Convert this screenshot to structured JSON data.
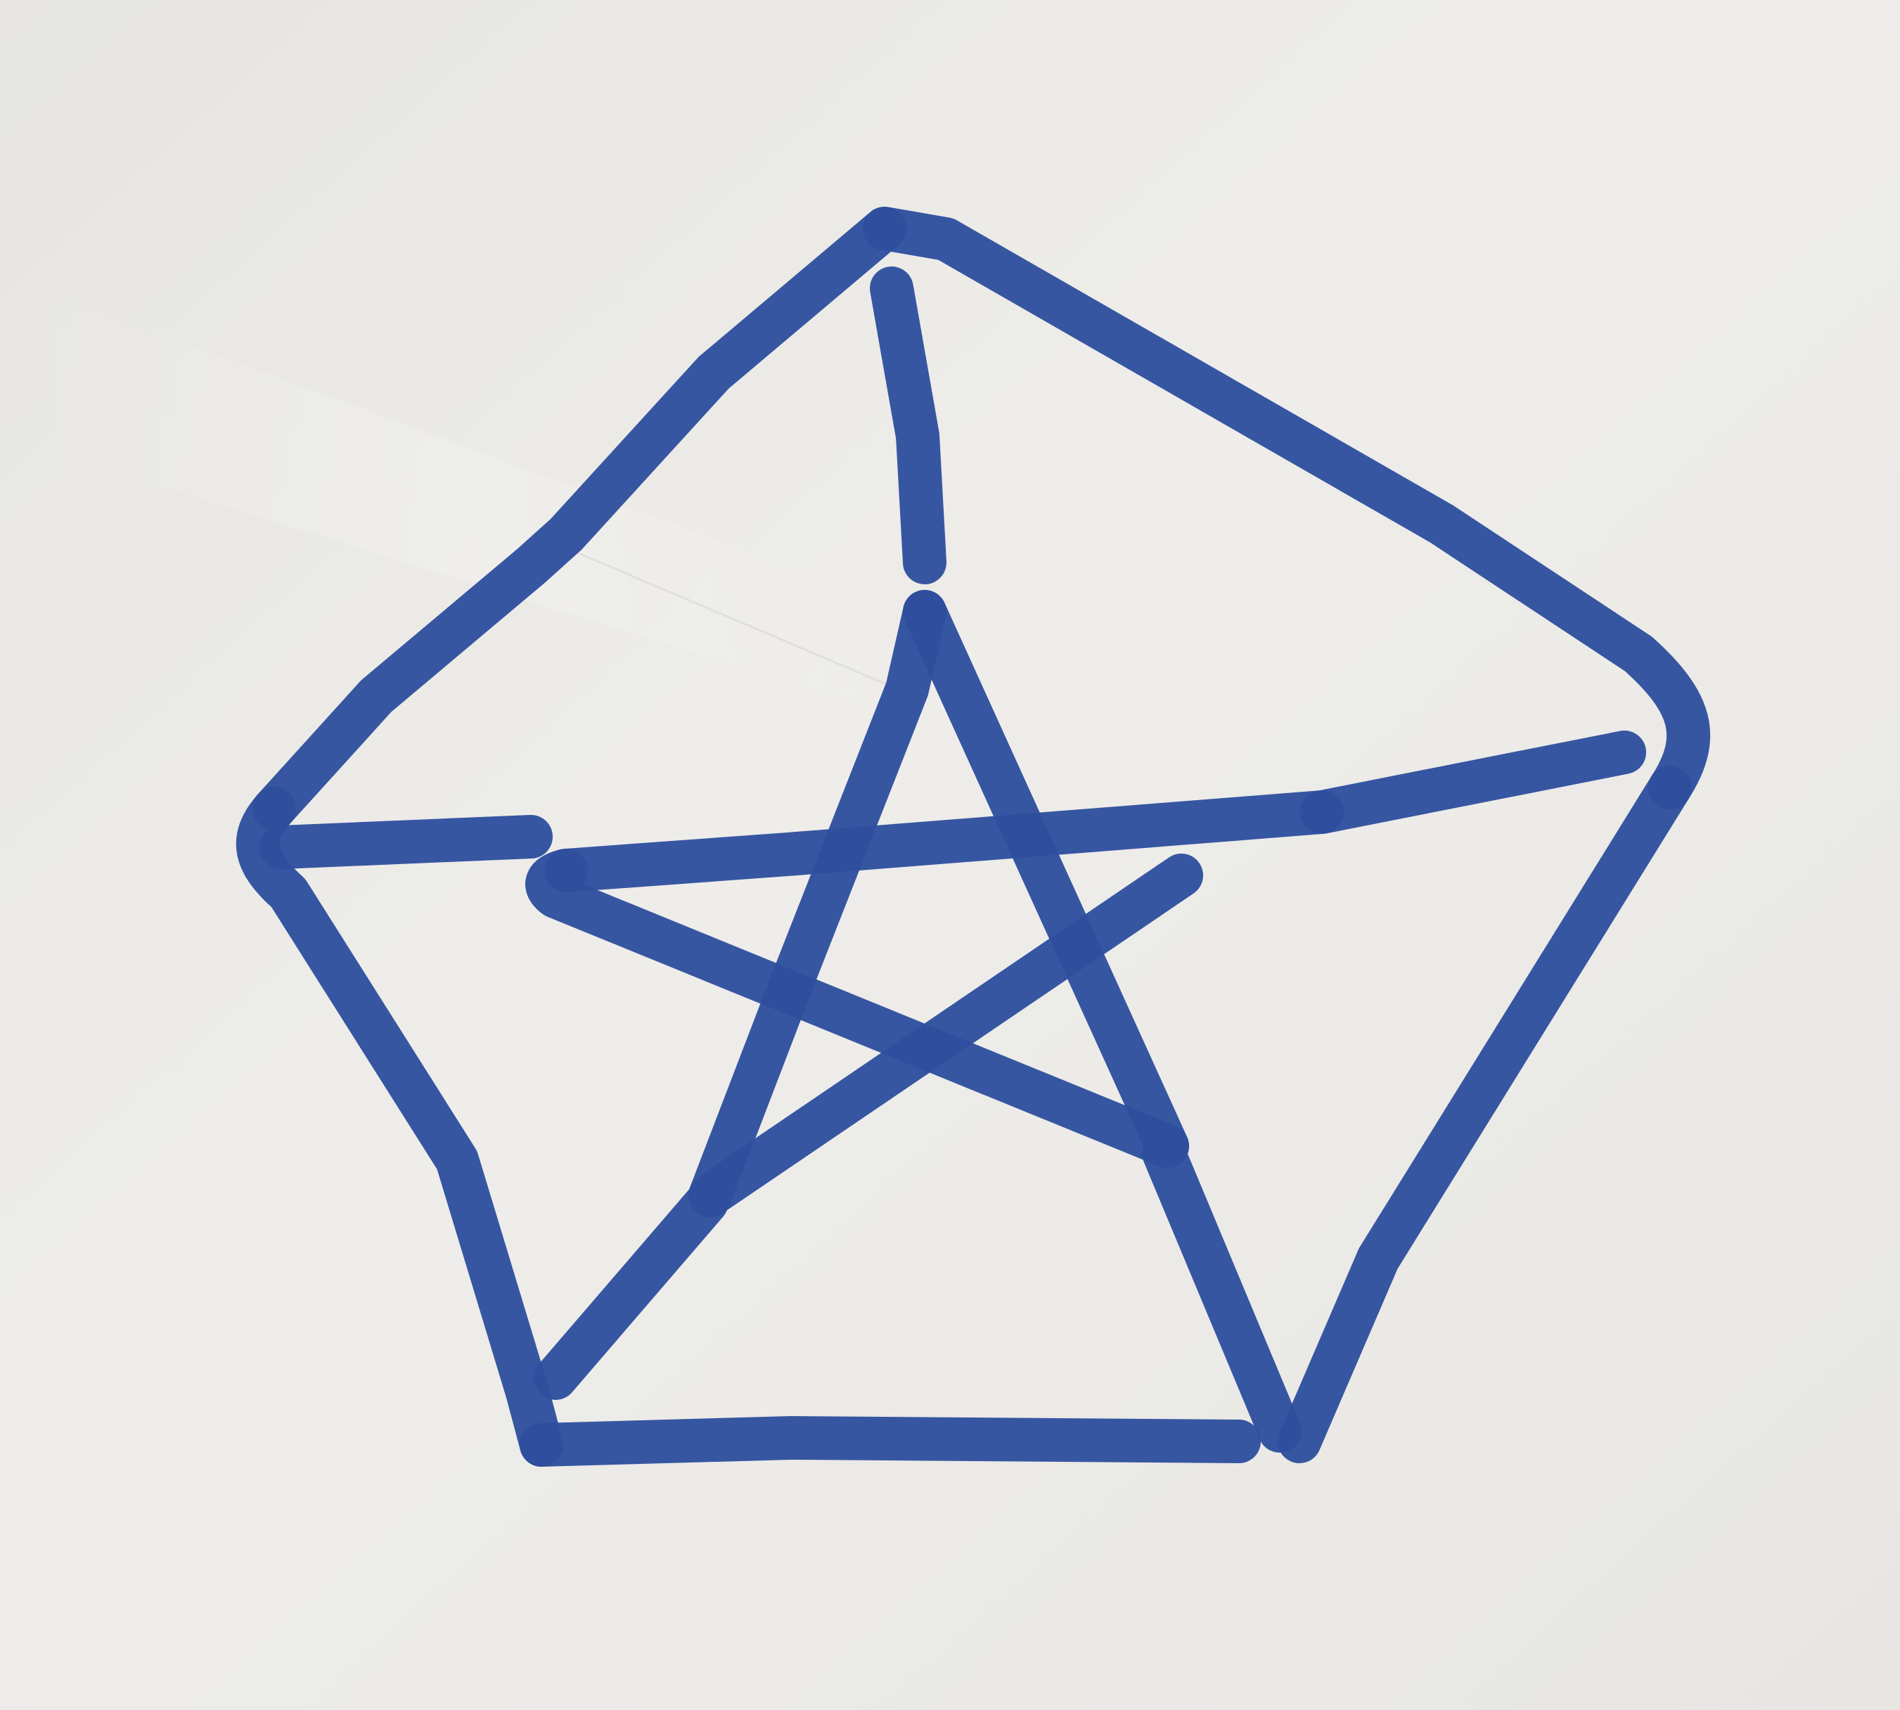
{
  "diagram": {
    "title": "",
    "colors": {
      "ink": "#2f4f9e",
      "ink_dark": "#233f88",
      "paper": "#ecebe8",
      "paper_shadow": "#dcdbd7"
    },
    "graph": {
      "outer_vertices": [
        "top",
        "upper-right",
        "lower-right",
        "lower-left",
        "left"
      ],
      "inner_vertices": [
        "inner-top",
        "inner-right",
        "inner-bottom-right",
        "inner-bottom-left",
        "inner-left"
      ],
      "outer_edges": [
        [
          "top",
          "upper-right"
        ],
        [
          "upper-right",
          "lower-right"
        ],
        [
          "lower-right",
          "lower-left"
        ],
        [
          "lower-left",
          "left"
        ],
        [
          "left",
          "top"
        ]
      ],
      "spokes": [
        [
          "top",
          "inner-top"
        ],
        [
          "upper-right",
          "inner-right"
        ],
        [
          "lower-right",
          "inner-bottom-right"
        ],
        [
          "lower-left",
          "inner-bottom-left"
        ],
        [
          "left",
          "inner-left"
        ]
      ],
      "pentagram_edges": [
        [
          "inner-top",
          "inner-bottom-right"
        ],
        [
          "inner-bottom-right",
          "inner-left"
        ],
        [
          "inner-left",
          "inner-right"
        ],
        [
          "inner-right",
          "inner-bottom-left"
        ],
        [
          "inner-bottom-left",
          "inner-top"
        ]
      ]
    }
  }
}
